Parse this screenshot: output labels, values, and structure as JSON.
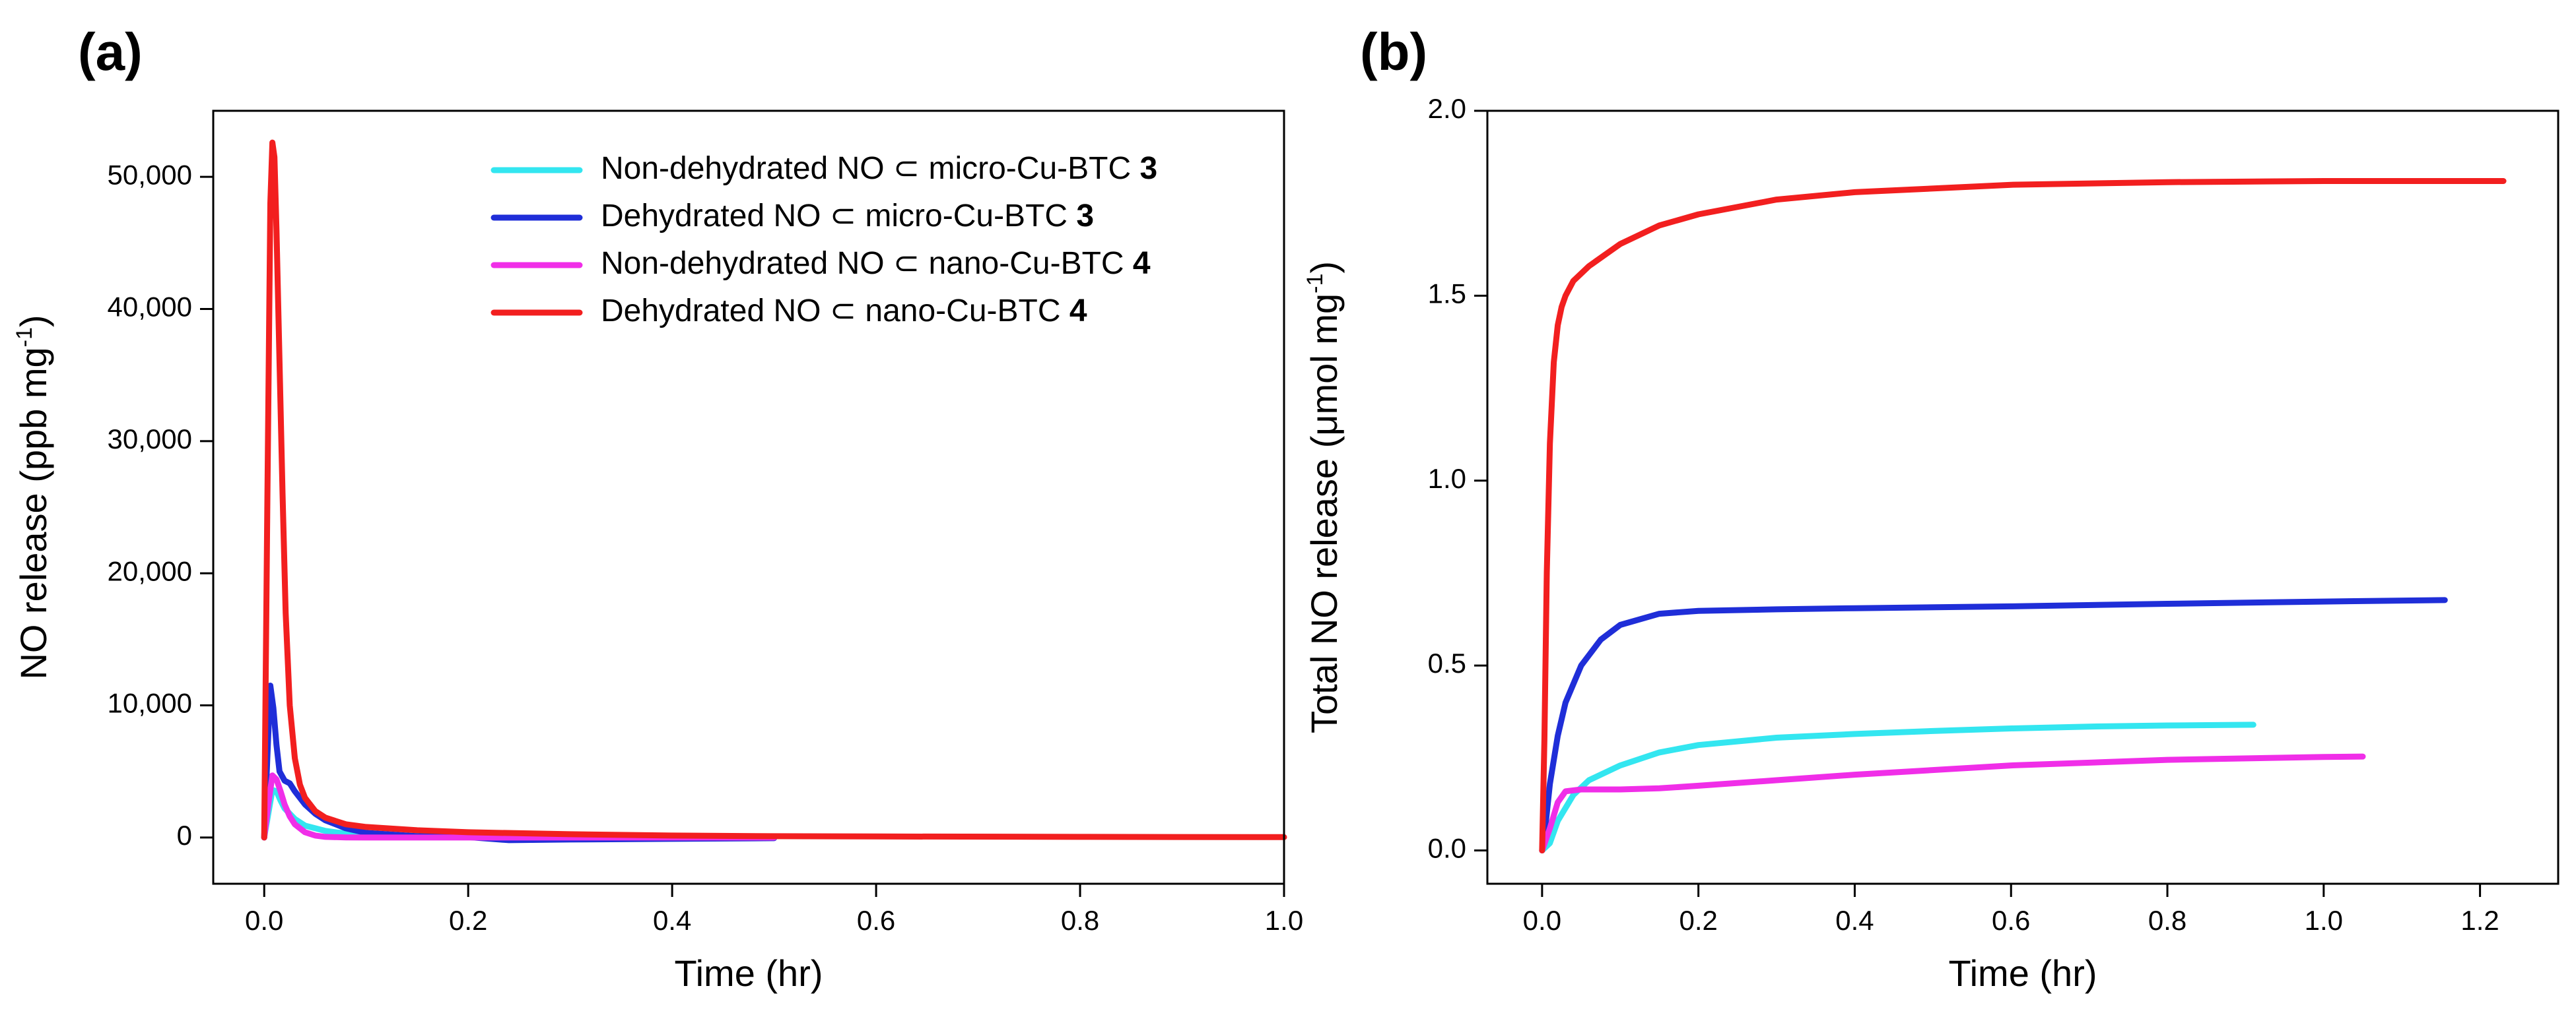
{
  "chart_data": [
    {
      "panel_label": "(a)",
      "type": "line",
      "xlabel": "Time (hr)",
      "ylabel_main": "NO release (ppb mg",
      "ylabel_sup": "-1",
      "ylabel_end": ")",
      "xlim": [
        -0.05,
        1.0
      ],
      "ylim": [
        -3500,
        55000
      ],
      "xticks": [
        0.0,
        0.2,
        0.4,
        0.6,
        0.8,
        1.0
      ],
      "xtick_labels": [
        "0.0",
        "0.2",
        "0.4",
        "0.6",
        "0.8",
        "1.0"
      ],
      "yticks": [
        0,
        10000,
        20000,
        30000,
        40000,
        50000
      ],
      "ytick_labels": [
        "0",
        "10,000",
        "20,000",
        "30,000",
        "40,000",
        "50,000"
      ],
      "legend_position": "top-right",
      "series": [
        {
          "name": "Non-dehydrated NO ⊂ micro-Cu-BTC 3",
          "legend_main": "Non-dehydrated NO",
          "legend_rest": " micro-Cu-BTC ",
          "legend_num": "3",
          "color": "#33e6f0",
          "x": [
            0,
            0.004,
            0.008,
            0.012,
            0.016,
            0.02,
            0.03,
            0.04,
            0.06,
            0.08,
            0.1,
            0.15,
            0.2,
            0.3,
            0.4,
            0.5
          ],
          "y": [
            0,
            1800,
            3600,
            3500,
            2800,
            2200,
            1400,
            900,
            500,
            300,
            200,
            100,
            60,
            30,
            10,
            0
          ]
        },
        {
          "name": "Dehydrated NO ⊂ micro-Cu-BTC 3",
          "legend_main": "Dehydrated NO",
          "legend_rest": " micro-Cu-BTC ",
          "legend_num": "3",
          "color": "#1f2ed8",
          "x": [
            0,
            0.003,
            0.006,
            0.009,
            0.012,
            0.015,
            0.02,
            0.025,
            0.03,
            0.04,
            0.05,
            0.06,
            0.08,
            0.1,
            0.15,
            0.2,
            0.24,
            0.3,
            0.4,
            0.5
          ],
          "y": [
            0,
            6000,
            11500,
            9800,
            7000,
            5000,
            4300,
            4100,
            3500,
            2500,
            1800,
            1300,
            700,
            350,
            100,
            30,
            -200,
            -150,
            -100,
            -50
          ]
        },
        {
          "name": "Non-dehydrated NO ⊂ nano-Cu-BTC 4",
          "legend_main": "Non-dehydrated NO",
          "legend_rest": " nano-Cu-BTC ",
          "legend_num": "4",
          "color": "#f02ee8",
          "x": [
            0,
            0.004,
            0.008,
            0.012,
            0.016,
            0.02,
            0.025,
            0.03,
            0.04,
            0.05,
            0.06,
            0.08,
            0.1,
            0.2,
            0.3,
            0.5
          ],
          "y": [
            0,
            2500,
            4700,
            4400,
            3500,
            2500,
            1600,
            1000,
            400,
            150,
            50,
            10,
            0,
            0,
            0,
            0
          ]
        },
        {
          "name": "Dehydrated NO ⊂ nano-Cu-BTC 4",
          "legend_main": "Dehydrated NO",
          "legend_rest": " nano-Cu-BTC ",
          "legend_num": "4",
          "color": "#f21f1f",
          "x": [
            0,
            0.003,
            0.006,
            0.008,
            0.01,
            0.012,
            0.015,
            0.018,
            0.021,
            0.025,
            0.03,
            0.035,
            0.04,
            0.05,
            0.06,
            0.08,
            0.1,
            0.15,
            0.2,
            0.3,
            0.4,
            0.5,
            0.6,
            0.8,
            1.0
          ],
          "y": [
            0,
            25000,
            48000,
            52600,
            51500,
            46000,
            36000,
            26000,
            17000,
            10000,
            6000,
            4000,
            3000,
            2000,
            1500,
            1000,
            800,
            550,
            400,
            250,
            150,
            100,
            80,
            50,
            30
          ]
        }
      ]
    },
    {
      "panel_label": "(b)",
      "type": "line",
      "xlabel": "Time (hr)",
      "ylabel_main": "Total NO release (",
      "ylabel_mu": "μ",
      "ylabel_unit": "mol mg",
      "ylabel_sup": "-1",
      "ylabel_end": ")",
      "xlim": [
        -0.07,
        1.3
      ],
      "ylim": [
        -0.09,
        2.0
      ],
      "xticks": [
        0.0,
        0.2,
        0.4,
        0.6,
        0.8,
        1.0,
        1.2
      ],
      "xtick_labels": [
        "0.0",
        "0.2",
        "0.4",
        "0.6",
        "0.8",
        "1.0",
        "1.2"
      ],
      "yticks": [
        0.0,
        0.5,
        1.0,
        1.5,
        2.0
      ],
      "ytick_labels": [
        "0.0",
        "0.5",
        "1.0",
        "1.5",
        "2.0"
      ],
      "series": [
        {
          "name": "Non-dehydrated NO ⊂ micro-Cu-BTC 3",
          "color": "#33e6f0",
          "x": [
            0,
            0.01,
            0.02,
            0.04,
            0.06,
            0.1,
            0.15,
            0.2,
            0.3,
            0.4,
            0.5,
            0.6,
            0.7,
            0.8,
            0.91
          ],
          "y": [
            0,
            0.02,
            0.08,
            0.15,
            0.19,
            0.23,
            0.265,
            0.285,
            0.305,
            0.315,
            0.323,
            0.33,
            0.335,
            0.338,
            0.34
          ]
        },
        {
          "name": "Dehydrated NO ⊂ micro-Cu-BTC 3",
          "color": "#1f2ed8",
          "x": [
            0,
            0.005,
            0.01,
            0.02,
            0.03,
            0.05,
            0.075,
            0.1,
            0.15,
            0.2,
            0.3,
            0.4,
            0.6,
            0.8,
            1.0,
            1.155
          ],
          "y": [
            0,
            0.08,
            0.18,
            0.31,
            0.4,
            0.5,
            0.57,
            0.61,
            0.64,
            0.648,
            0.652,
            0.655,
            0.66,
            0.667,
            0.673,
            0.677
          ]
        },
        {
          "name": "Non-dehydrated NO ⊂ nano-Cu-BTC 4",
          "color": "#f02ee8",
          "x": [
            0,
            0.01,
            0.02,
            0.03,
            0.05,
            0.1,
            0.15,
            0.2,
            0.3,
            0.4,
            0.6,
            0.8,
            1.0,
            1.05
          ],
          "y": [
            0,
            0.06,
            0.13,
            0.16,
            0.165,
            0.165,
            0.168,
            0.175,
            0.19,
            0.205,
            0.23,
            0.245,
            0.253,
            0.254
          ]
        },
        {
          "name": "Dehydrated NO ⊂ nano-Cu-BTC 4",
          "color": "#f21f1f",
          "x": [
            0,
            0.003,
            0.006,
            0.01,
            0.015,
            0.02,
            0.025,
            0.03,
            0.04,
            0.06,
            0.08,
            0.1,
            0.15,
            0.2,
            0.3,
            0.4,
            0.6,
            0.8,
            1.0,
            1.23
          ],
          "y": [
            0,
            0.3,
            0.75,
            1.1,
            1.32,
            1.42,
            1.47,
            1.5,
            1.54,
            1.58,
            1.61,
            1.64,
            1.69,
            1.72,
            1.76,
            1.78,
            1.8,
            1.807,
            1.81,
            1.81
          ]
        }
      ]
    }
  ]
}
